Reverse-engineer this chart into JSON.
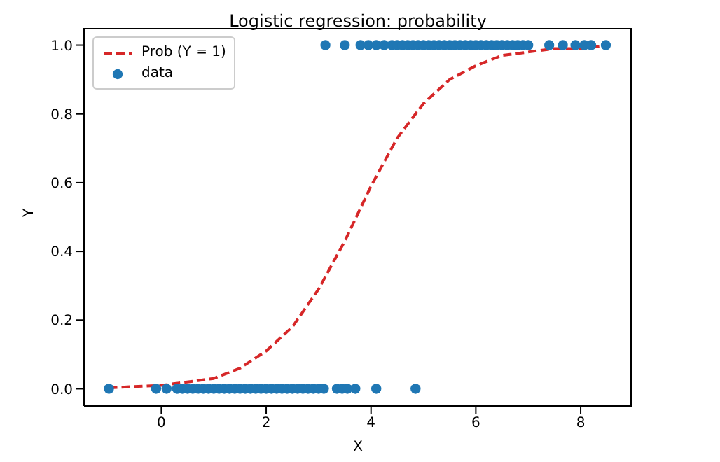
{
  "chart_data": {
    "type": "scatter",
    "title": "Logistic regression: probability",
    "xlabel": "X",
    "ylabel": "Y",
    "xlim": [
      -1.475,
      8.975
    ],
    "ylim": [
      -0.05,
      1.05
    ],
    "xticks": [
      0,
      2,
      4,
      6,
      8
    ],
    "yticks": [
      {
        "value": 0,
        "label": "0.0"
      },
      0.2,
      0.4,
      0.6,
      0.8,
      {
        "value": 1,
        "label": "1.0"
      }
    ],
    "legend": "top left",
    "grid": false,
    "series": [
      {
        "name": "Prob (Y = 1)",
        "type": "line",
        "line_style": "dashed",
        "color": "#d62728",
        "x": [
          -1,
          0,
          1,
          1.5,
          2,
          2.5,
          3,
          3.5,
          4,
          4.5,
          5,
          5.5,
          6,
          6.5,
          7,
          7.5,
          8,
          8.5
        ],
        "values": [
          0.003,
          0.01,
          0.03,
          0.06,
          0.11,
          0.18,
          0.29,
          0.43,
          0.59,
          0.73,
          0.83,
          0.9,
          0.94,
          0.97,
          0.98,
          0.99,
          0.99,
          1.0
        ]
      },
      {
        "name": "data",
        "marker": "circle",
        "color": "#1f77b4",
        "x": [
          -1,
          -0.1,
          0.1,
          0.3,
          0.4,
          0.5,
          0.6,
          0.7,
          0.8,
          0.9,
          1,
          1.1,
          1.2,
          1.3,
          1.4,
          1.5,
          1.6,
          1.7,
          1.8,
          1.9,
          2,
          2.1,
          2.2,
          2.3,
          2.4,
          2.5,
          2.6,
          2.7,
          2.8,
          2.9,
          3,
          3.1,
          3.35,
          3.45,
          3.55,
          3.7,
          4.1,
          4.85,
          3.13,
          3.5,
          3.8,
          3.95,
          4.1,
          4.25,
          4.4,
          4.5,
          4.6,
          4.7,
          4.8,
          4.9,
          5,
          5.1,
          5.2,
          5.3,
          5.4,
          5.5,
          5.6,
          5.7,
          5.8,
          5.9,
          6,
          6.1,
          6.2,
          6.3,
          6.4,
          6.5,
          6.6,
          6.7,
          6.8,
          6.9,
          7,
          7.4,
          7.66,
          7.9,
          8.07,
          8.2,
          8.48
        ],
        "values": [
          0,
          0,
          0,
          0,
          0,
          0,
          0,
          0,
          0,
          0,
          0,
          0,
          0,
          0,
          0,
          0,
          0,
          0,
          0,
          0,
          0,
          0,
          0,
          0,
          0,
          0,
          0,
          0,
          0,
          0,
          0,
          0,
          0,
          0,
          0,
          0,
          0,
          0,
          1,
          1,
          1,
          1,
          1,
          1,
          1,
          1,
          1,
          1,
          1,
          1,
          1,
          1,
          1,
          1,
          1,
          1,
          1,
          1,
          1,
          1,
          1,
          1,
          1,
          1,
          1,
          1,
          1,
          1,
          1,
          1,
          1,
          1,
          1,
          1,
          1,
          1,
          1
        ]
      }
    ]
  }
}
